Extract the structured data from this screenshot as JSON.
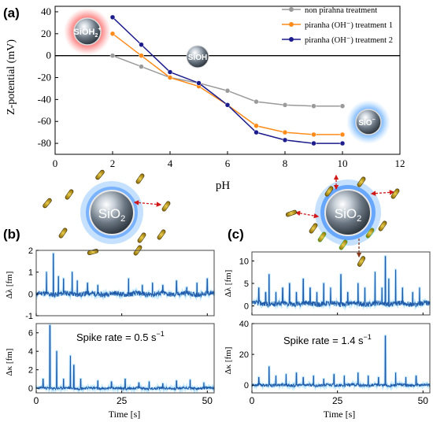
{
  "panel_a": {
    "label": "(a)",
    "xlabel": "pH",
    "ylabel": "Z-potential (mV)",
    "species": {
      "top": "SiOH",
      "top_sub": "2",
      "top_sup": "+",
      "mid": "SiOH",
      "bottom": "SiO",
      "bottom_sup": "−"
    },
    "colors": {
      "series1": "#9a9a9a",
      "series2": "#ff8c1a",
      "series3": "#1c1c8c",
      "positive": "#ff2a2a",
      "negative": "#2a8cff"
    }
  },
  "panel_b": {
    "label": "(b)",
    "particle": "SiO",
    "particle_sub": "2",
    "top_ylabel": "Δλ [fm]",
    "bottom_ylabel": "Δκ [fm]",
    "xlabel": "Time [s]",
    "spike_text": "Spike rate = 0.5 s",
    "spike_sup": "−1"
  },
  "panel_c": {
    "label": "(c)",
    "particle": "SiO",
    "particle_sub": "2",
    "top_ylabel": "Δλ [fm]",
    "bottom_ylabel": "Δκ [fm]",
    "xlabel": "Time [s]",
    "spike_text": "Spike rate = 1.4 s",
    "spike_sup": "−1"
  },
  "chart_data": [
    {
      "type": "line",
      "title": "",
      "xlabel": "pH",
      "ylabel": "Z-potential (mV)",
      "xlim": [
        0,
        12
      ],
      "ylim": [
        -90,
        45
      ],
      "xticks": [
        0,
        2,
        4,
        6,
        8,
        10,
        12
      ],
      "yticks": [
        -80,
        -60,
        -40,
        -20,
        0,
        20,
        40
      ],
      "legend_position": "top-right",
      "series": [
        {
          "name": "non pirahna treatment",
          "color": "#9a9a9a",
          "x": [
            2,
            3,
            4,
            5,
            6,
            7,
            8,
            9,
            10
          ],
          "y": [
            0,
            -10,
            -20,
            -25,
            -32,
            -42,
            -45,
            -46,
            -46
          ]
        },
        {
          "name": "piranha (OH⁻) treatment 1",
          "color": "#ff8c1a",
          "x": [
            2,
            3,
            4,
            5,
            6,
            7,
            8,
            9,
            10
          ],
          "y": [
            20,
            0,
            -20,
            -28,
            -45,
            -64,
            -70,
            -72,
            -72
          ]
        },
        {
          "name": "piranha (OH⁻) treatment 2",
          "color": "#1c1c8c",
          "x": [
            2,
            3,
            4,
            5,
            6,
            7,
            8,
            9,
            10
          ],
          "y": [
            35,
            10,
            -15,
            -25,
            -45,
            -70,
            -77,
            -80,
            -80
          ]
        }
      ],
      "reference_line": {
        "y": 0
      }
    },
    {
      "type": "line",
      "panel": "b-top",
      "xlabel": "",
      "ylabel": "Δλ [fm]",
      "xlim": [
        0,
        52
      ],
      "ylim": [
        -1,
        2
      ],
      "xticks": [
        0,
        25,
        50
      ],
      "yticks": [
        -1,
        0,
        1,
        2
      ],
      "baseline": 0,
      "noise": 0.12,
      "spikes": [
        [
          3,
          1.0
        ],
        [
          5,
          1.85
        ],
        [
          6.5,
          0.8
        ],
        [
          8,
          0.7
        ],
        [
          10.5,
          1.0
        ],
        [
          12,
          0.6
        ],
        [
          15,
          0.5
        ],
        [
          18,
          0.4
        ],
        [
          27,
          0.7
        ],
        [
          31,
          0.4
        ],
        [
          34,
          0.5
        ],
        [
          37,
          0.4
        ],
        [
          41,
          0.6
        ],
        [
          44,
          0.3
        ],
        [
          47,
          0.5
        ],
        [
          50,
          0.7
        ]
      ]
    },
    {
      "type": "line",
      "panel": "b-bottom",
      "xlabel": "Time [s]",
      "ylabel": "Δκ [fm]",
      "xlim": [
        0,
        52
      ],
      "ylim": [
        -0.5,
        7
      ],
      "xticks": [
        0,
        25,
        50
      ],
      "yticks": [
        0,
        2,
        4,
        6
      ],
      "baseline": 0,
      "noise": 0.15,
      "spikes": [
        [
          2,
          1.0
        ],
        [
          4,
          6.8
        ],
        [
          6,
          4.0
        ],
        [
          8,
          1.0
        ],
        [
          10,
          3.5
        ],
        [
          11,
          2.5
        ],
        [
          13,
          1.0
        ],
        [
          18,
          0.8
        ],
        [
          22,
          0.7
        ],
        [
          26,
          1.0
        ],
        [
          30,
          0.6
        ],
        [
          33,
          0.7
        ],
        [
          37,
          0.5
        ],
        [
          41,
          0.8
        ],
        [
          45,
          0.9
        ],
        [
          49,
          0.6
        ]
      ]
    },
    {
      "type": "line",
      "panel": "c-top",
      "xlabel": "",
      "ylabel": "Δλ [fm]",
      "xlim": [
        0,
        52
      ],
      "ylim": [
        -2,
        12
      ],
      "xticks": [
        0,
        25,
        50
      ],
      "yticks": [
        0,
        5,
        10
      ],
      "baseline": 0.5,
      "noise": 0.6,
      "spikes": [
        [
          2,
          4
        ],
        [
          4,
          3
        ],
        [
          5,
          7
        ],
        [
          7,
          3
        ],
        [
          9,
          4
        ],
        [
          11,
          5
        ],
        [
          13,
          3
        ],
        [
          15,
          6
        ],
        [
          17,
          4
        ],
        [
          19,
          3
        ],
        [
          21,
          5
        ],
        [
          23,
          4
        ],
        [
          26,
          7
        ],
        [
          28,
          3
        ],
        [
          31,
          5
        ],
        [
          33,
          4
        ],
        [
          36,
          7.5
        ],
        [
          38,
          4
        ],
        [
          39,
          11
        ],
        [
          40,
          6
        ],
        [
          42,
          8
        ],
        [
          44,
          4
        ],
        [
          47,
          3
        ],
        [
          49,
          4
        ]
      ]
    },
    {
      "type": "line",
      "panel": "c-bottom",
      "xlabel": "Time [s]",
      "ylabel": "Δκ [fm]",
      "xlim": [
        0,
        52
      ],
      "ylim": [
        -5,
        40
      ],
      "xticks": [
        0,
        25,
        50
      ],
      "yticks": [
        0,
        20,
        40
      ],
      "baseline": 0,
      "noise": 1.0,
      "spikes": [
        [
          2,
          5
        ],
        [
          5,
          12
        ],
        [
          7,
          6
        ],
        [
          10,
          7
        ],
        [
          13,
          8
        ],
        [
          15,
          5
        ],
        [
          18,
          6
        ],
        [
          21,
          4
        ],
        [
          24,
          7
        ],
        [
          27,
          6
        ],
        [
          31,
          8
        ],
        [
          34,
          6
        ],
        [
          37,
          5
        ],
        [
          39,
          32
        ],
        [
          42,
          8
        ],
        [
          45,
          5
        ],
        [
          48,
          6
        ]
      ]
    }
  ]
}
